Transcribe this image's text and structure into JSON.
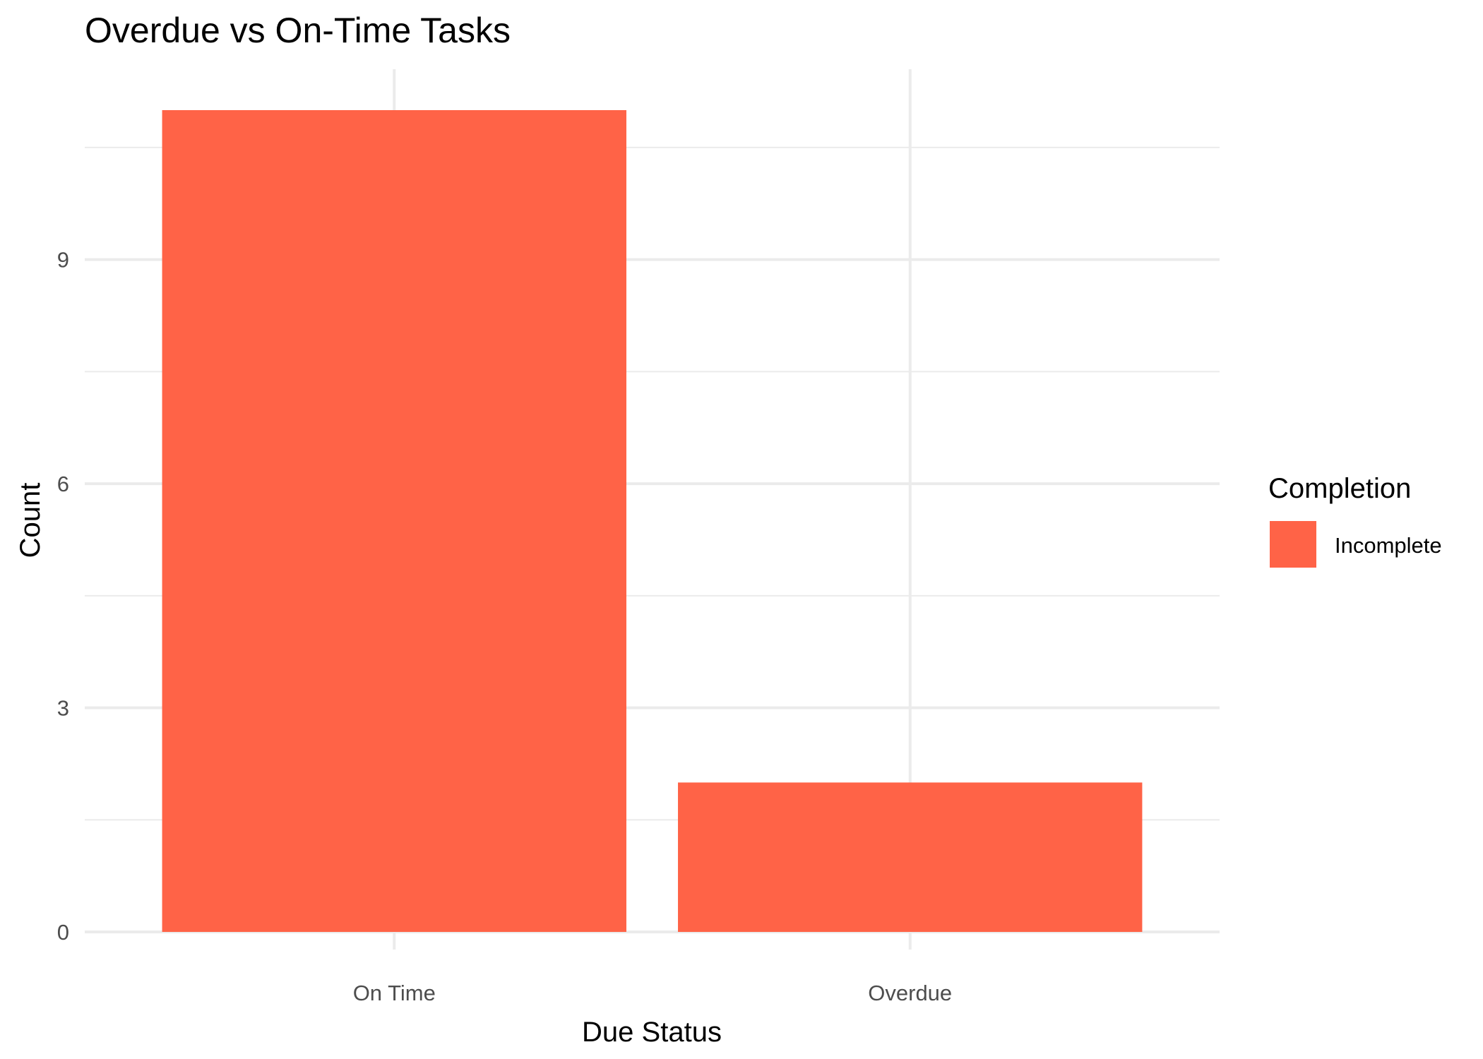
{
  "chart_data": {
    "type": "bar",
    "title": "Overdue vs On-Time Tasks",
    "xlabel": "Due Status",
    "ylabel": "Count",
    "categories": [
      "On Time",
      "Overdue"
    ],
    "series": [
      {
        "name": "Incomplete",
        "values": [
          11,
          2
        ],
        "color": "#ff6347"
      }
    ],
    "ylim": [
      0,
      11.55
    ],
    "yticks": [
      0,
      3,
      6,
      9
    ],
    "yticks_minor": [
      1.5,
      4.5,
      7.5,
      10.5
    ],
    "grid": true,
    "legend": {
      "title": "Completion",
      "position": "right"
    }
  }
}
